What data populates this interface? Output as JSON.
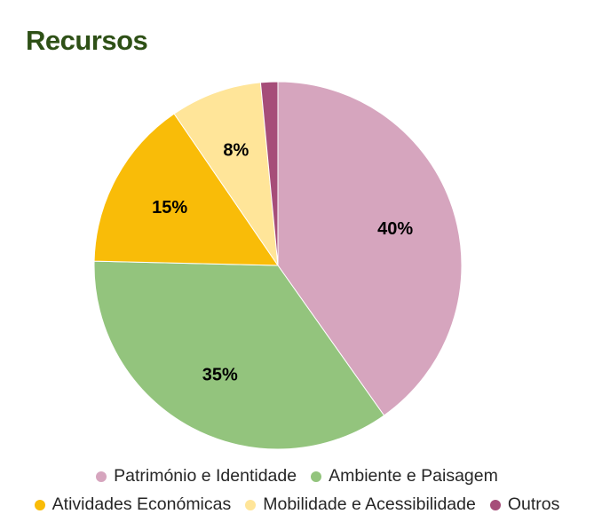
{
  "title": "Recursos",
  "chart_data": {
    "type": "pie",
    "title": "Recursos",
    "slices": [
      {
        "name": "Património e Identidade",
        "value": 40,
        "label": "40%",
        "color": "#d6a5be"
      },
      {
        "name": "Ambiente e Paisagem",
        "value": 35,
        "label": "35%",
        "color": "#93c47d"
      },
      {
        "name": "Atividades Económicas",
        "value": 15,
        "label": "15%",
        "color": "#f9bc08"
      },
      {
        "name": "Mobilidade e Acessibilidade",
        "value": 8,
        "label": "8%",
        "color": "#ffe599"
      },
      {
        "name": "Outros",
        "value": 1.5,
        "label": "",
        "color": "#a64d79"
      }
    ],
    "legend_position": "bottom"
  }
}
